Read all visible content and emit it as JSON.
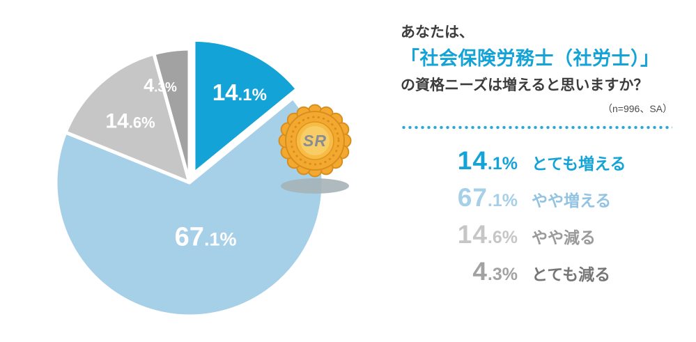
{
  "question": {
    "line1": "あなたは、",
    "line2": "「社会保険労務士（社労士）」",
    "line3": "の資格ニーズは増えると思いますか？",
    "note": "（n=996、SA）"
  },
  "badge": {
    "text": "SR"
  },
  "colors": {
    "accent_blue": "#13a3d6",
    "light_blue": "#a6cfe8",
    "light_gray": "#c6c6c6",
    "mid_gray": "#a2a2a2",
    "badge_orange": "#f3a92f",
    "badge_orange_dark": "#d88e1e",
    "shadow_gray": "#a6b2b8"
  },
  "chart_data": {
    "type": "pie",
    "title": "あなたは、「社会保険労務士（社労士）」の資格ニーズは増えると思いますか？",
    "sample_note": "（n=996、SA）",
    "start_angle": "top",
    "direction": "clockwise",
    "legend_position": "right",
    "exploded_slice_index": 0,
    "slices": [
      {
        "label": "とても増える",
        "value": 14.1,
        "display": "14.1%",
        "color": "#13a3d6",
        "label_color": "#13a3d6"
      },
      {
        "label": "やや増える",
        "value": 67.1,
        "display": "67.1%",
        "color": "#a6cfe8",
        "label_color": "#93c3e2"
      },
      {
        "label": "やや減る",
        "value": 14.6,
        "display": "14.6%",
        "color": "#c6c6c6",
        "label_color": "#9a9a9a"
      },
      {
        "label": "とても減る",
        "value": 4.3,
        "display": "4.3%",
        "color": "#a2a2a2",
        "label_color": "#767676"
      }
    ]
  }
}
